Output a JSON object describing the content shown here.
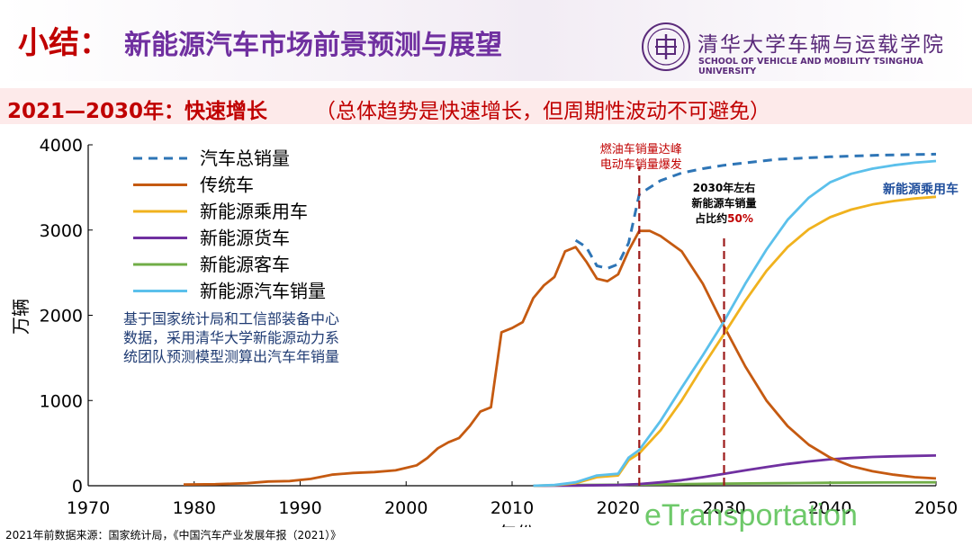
{
  "header": {
    "title_prefix": "小结：",
    "title_main": "新能源汽车市场前景预测与展望",
    "institution_cn": "清华大学车辆与运载学院",
    "institution_en": "SCHOOL OF VEHICLE AND MOBILITY TSINGHUA UNIVERSITY"
  },
  "subtitle": {
    "highlight": "2021—2030年：快速增长",
    "note": "（总体趋势是快速增长，但周期性波动不可避免）"
  },
  "footer": {
    "source": "2021年前数据来源：国家统计局，《中国汽车产业发展年报（2021）》",
    "watermark": "eTransportation"
  },
  "chart_data": {
    "type": "line",
    "xlabel": "年份",
    "ylabel": "万辆",
    "xlim": [
      1970,
      2050
    ],
    "ylim": [
      0,
      4000
    ],
    "x_ticks": [
      1970,
      1980,
      1990,
      2000,
      2010,
      2020,
      2030,
      2040,
      2050
    ],
    "y_ticks": [
      0,
      1000,
      2000,
      3000,
      4000
    ],
    "legend_position": "top-left",
    "grid": false,
    "colors": {
      "total": "#2e75b6",
      "ice": "#c55a11",
      "nev_passenger": "#f0b21e",
      "nev_truck": "#7030a0",
      "nev_bus": "#70ad47",
      "nev_total": "#5bc0eb",
      "marker": "#9c1b1b"
    },
    "series": [
      {
        "key": "total",
        "name": "汽车总销量",
        "dashed": true,
        "x": [
          2016,
          2017,
          2018,
          2019,
          2020,
          2021,
          2022,
          2024,
          2026,
          2028,
          2030,
          2035,
          2040,
          2045,
          2050
        ],
        "y": [
          2880,
          2800,
          2580,
          2550,
          2600,
          2850,
          3420,
          3580,
          3670,
          3720,
          3760,
          3830,
          3860,
          3880,
          3890
        ]
      },
      {
        "key": "ice",
        "name": "传统车",
        "x": [
          1979,
          1982,
          1985,
          1987,
          1989,
          1991,
          1993,
          1995,
          1997,
          1999,
          2000,
          2001,
          2002,
          2003,
          2004,
          2005,
          2006,
          2007,
          2008,
          2009,
          2010,
          2011,
          2012,
          2013,
          2014,
          2015,
          2016,
          2017,
          2018,
          2019,
          2020,
          2021,
          2022,
          2023,
          2024,
          2026,
          2028,
          2030,
          2032,
          2034,
          2036,
          2038,
          2040,
          2042,
          2044,
          2046,
          2048,
          2050
        ],
        "y": [
          15,
          18,
          30,
          50,
          55,
          80,
          130,
          150,
          160,
          180,
          210,
          240,
          325,
          440,
          510,
          560,
          700,
          870,
          920,
          1800,
          1850,
          1920,
          2200,
          2350,
          2450,
          2750,
          2800,
          2630,
          2430,
          2400,
          2480,
          2760,
          2990,
          2990,
          2930,
          2750,
          2370,
          1870,
          1400,
          1000,
          700,
          480,
          330,
          230,
          170,
          130,
          100,
          85
        ]
      },
      {
        "key": "nev_passenger",
        "name": "新能源乘用车",
        "x": [
          2012,
          2014,
          2016,
          2018,
          2020,
          2021,
          2022,
          2024,
          2026,
          2028,
          2030,
          2032,
          2034,
          2036,
          2038,
          2040,
          2042,
          2044,
          2046,
          2048,
          2050
        ],
        "y": [
          0,
          5,
          30,
          100,
          120,
          300,
          380,
          650,
          1000,
          1400,
          1780,
          2170,
          2520,
          2800,
          3010,
          3150,
          3240,
          3300,
          3340,
          3370,
          3390
        ]
      },
      {
        "key": "nev_truck",
        "name": "新能源货车",
        "x": [
          2012,
          2016,
          2020,
          2022,
          2024,
          2026,
          2028,
          2030,
          2032,
          2034,
          2036,
          2038,
          2040,
          2042,
          2044,
          2046,
          2048,
          2050
        ],
        "y": [
          0,
          2,
          8,
          20,
          40,
          65,
          100,
          140,
          180,
          220,
          255,
          285,
          310,
          325,
          338,
          345,
          350,
          355
        ]
      },
      {
        "key": "nev_bus",
        "name": "新能源客车",
        "x": [
          2012,
          2016,
          2020,
          2025,
          2030,
          2035,
          2040,
          2045,
          2050
        ],
        "y": [
          0,
          10,
          12,
          18,
          25,
          30,
          35,
          38,
          40
        ]
      },
      {
        "key": "nev_total",
        "name": "新能源汽车销量",
        "x": [
          2012,
          2014,
          2016,
          2018,
          2020,
          2021,
          2022,
          2024,
          2026,
          2028,
          2030,
          2032,
          2034,
          2036,
          2038,
          2040,
          2042,
          2044,
          2046,
          2048,
          2050
        ],
        "y": [
          0,
          8,
          40,
          120,
          140,
          330,
          420,
          760,
          1150,
          1530,
          1930,
          2370,
          2770,
          3120,
          3380,
          3560,
          3660,
          3720,
          3760,
          3790,
          3810
        ]
      }
    ],
    "markers": [
      {
        "x": 2022,
        "label_lines": [
          "燃油车销量达峰",
          "电动车销量爆发"
        ],
        "label_color": "#c00000"
      },
      {
        "x": 2030,
        "label_lines": [
          "2030年左右",
          "新能源车销量",
          "占比约"
        ],
        "highlight": "50%",
        "label_color": "#000000",
        "highlight_color": "#c00000"
      }
    ],
    "annotations": {
      "series_label": "新能源乘用车",
      "series_label_color": "#1f4e9c",
      "method_note": [
        "基于国家统计局和工信部装备中心",
        "数据，采用清华大学新能源动力系",
        "统团队预测模型测算出汽车年销量"
      ],
      "method_note_color": "#1f3b73"
    }
  }
}
